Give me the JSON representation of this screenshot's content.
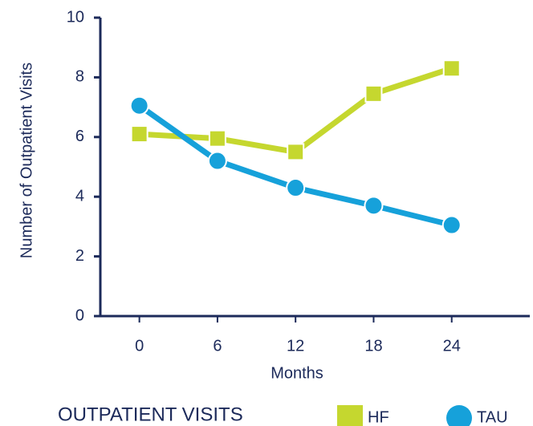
{
  "chart_data": {
    "type": "line",
    "x_label": "Months",
    "y_label": "Number of Outpatient Visits",
    "legend_title": "OUTPATIENT VISITS",
    "x": [
      0,
      6,
      12,
      18,
      24
    ],
    "series": [
      {
        "name": "HF",
        "color": "#c5d72f",
        "marker": "square",
        "values": [
          6.1,
          5.95,
          5.5,
          7.45,
          8.3
        ]
      },
      {
        "name": "TAU",
        "color": "#16a1da",
        "marker": "circle",
        "values": [
          7.05,
          5.2,
          4.3,
          3.7,
          3.05
        ]
      }
    ],
    "xlim": [
      -3,
      30
    ],
    "ylim": [
      0,
      10
    ],
    "xticks": [
      0,
      6,
      12,
      18,
      24
    ],
    "yticks": [
      0,
      2,
      4,
      6,
      8,
      10
    ],
    "grid": false,
    "legend": "bottom"
  }
}
